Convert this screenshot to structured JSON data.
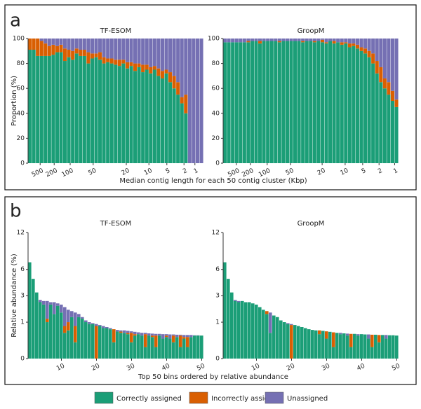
{
  "figure": {
    "panels": [
      {
        "label": "a",
        "xlabel": "Median contig length for each 50 contig cluster (Kbp)"
      },
      {
        "label": "b",
        "xlabel": "Top 50 bins ordered by relative abundance"
      }
    ]
  },
  "chart_data": [
    {
      "type": "stacked_bar",
      "title": "TF-ESOM",
      "ylabel": "Proportion (%)",
      "xlim": [
        0,
        45
      ],
      "xticks": [
        {
          "value": 3.1,
          "label": "500"
        },
        {
          "value": 6.7,
          "label": "200"
        },
        {
          "value": 10.8,
          "label": "100"
        },
        {
          "value": 16.7,
          "label": "50"
        },
        {
          "value": 25.2,
          "label": "20"
        },
        {
          "value": 31,
          "label": "10"
        },
        {
          "value": 35.6,
          "label": "5"
        },
        {
          "value": 40,
          "label": "2"
        },
        {
          "value": 42.8,
          "label": "1"
        }
      ],
      "ylim": [
        0,
        100
      ],
      "yticks": [
        0,
        20,
        40,
        60,
        80,
        100
      ],
      "series": [
        {
          "name": "Correctly assigned",
          "color": "#1b9e77",
          "values": [
            91,
            91,
            86,
            86,
            86,
            86,
            87,
            89,
            89,
            82,
            85,
            83,
            88,
            86,
            86,
            80,
            84,
            85,
            83,
            80,
            81,
            80,
            79,
            78,
            80,
            76,
            78,
            74,
            77,
            73,
            75,
            72,
            75,
            70,
            68,
            72,
            65,
            60,
            55,
            48,
            40,
            0,
            0,
            0,
            0
          ]
        },
        {
          "name": "Incorrectly assigned",
          "color": "#d95f02",
          "values": [
            9,
            9,
            14,
            12,
            10,
            8,
            8,
            5,
            6,
            10,
            6,
            7,
            4,
            5,
            5,
            9,
            4,
            3,
            6,
            5,
            3,
            4,
            4,
            5,
            3,
            5,
            3,
            6,
            3,
            6,
            4,
            5,
            3,
            6,
            6,
            3,
            8,
            10,
            10,
            5,
            15,
            0,
            0,
            0,
            0
          ]
        },
        {
          "name": "Unassigned",
          "color": "#7570b3",
          "values": [
            0,
            0,
            0,
            2,
            4,
            6,
            5,
            6,
            5,
            8,
            9,
            10,
            8,
            9,
            9,
            11,
            12,
            12,
            11,
            15,
            16,
            16,
            17,
            17,
            17,
            19,
            19,
            20,
            20,
            21,
            21,
            23,
            22,
            24,
            26,
            25,
            27,
            30,
            35,
            47,
            45,
            100,
            100,
            100,
            100
          ]
        }
      ]
    },
    {
      "type": "stacked_bar",
      "title": "GroopM",
      "xlim": [
        0,
        45
      ],
      "xticks": [
        {
          "value": 3.4,
          "label": "500"
        },
        {
          "value": 7,
          "label": "200"
        },
        {
          "value": 11.3,
          "label": "100"
        },
        {
          "value": 17.3,
          "label": "50"
        },
        {
          "value": 25.4,
          "label": "20"
        },
        {
          "value": 31.3,
          "label": "10"
        },
        {
          "value": 35.8,
          "label": "5"
        },
        {
          "value": 40,
          "label": "2"
        },
        {
          "value": 44,
          "label": "1"
        }
      ],
      "ylim": [
        0,
        100
      ],
      "yticks": [
        0,
        20,
        40,
        60,
        80,
        100
      ],
      "series": [
        {
          "name": "Correctly assigned",
          "color": "#1b9e77",
          "values": [
            97,
            97,
            97,
            97,
            97,
            97,
            97,
            98,
            98,
            96,
            98,
            98,
            98,
            98,
            97,
            98,
            98,
            98,
            98,
            98,
            97,
            98,
            98,
            97,
            98,
            97,
            96,
            98,
            96,
            97,
            95,
            96,
            93,
            94,
            92,
            90,
            88,
            85,
            80,
            72,
            65,
            60,
            55,
            50,
            45
          ]
        },
        {
          "name": "Incorrectly assigned",
          "color": "#d95f02",
          "values": [
            0,
            0,
            0,
            0,
            0,
            0,
            1,
            0,
            0,
            2,
            0,
            0,
            0,
            0,
            1,
            0,
            0,
            0,
            0,
            0,
            1,
            0,
            0,
            1,
            0,
            2,
            1,
            0,
            2,
            0,
            2,
            1,
            3,
            2,
            3,
            3,
            4,
            5,
            8,
            10,
            12,
            8,
            10,
            8,
            6
          ]
        },
        {
          "name": "Unassigned",
          "color": "#7570b3",
          "values": [
            3,
            3,
            3,
            3,
            3,
            3,
            2,
            2,
            2,
            2,
            2,
            2,
            2,
            2,
            2,
            2,
            2,
            2,
            2,
            2,
            2,
            2,
            2,
            2,
            2,
            1,
            3,
            2,
            2,
            3,
            3,
            3,
            4,
            4,
            5,
            7,
            8,
            10,
            12,
            18,
            23,
            32,
            35,
            42,
            49
          ]
        }
      ]
    },
    {
      "type": "stacked_bar",
      "title": "TF-ESOM",
      "ylabel": "Relative abundance (%)",
      "x": [
        1,
        2,
        3,
        4,
        5,
        6,
        7,
        8,
        9,
        10,
        11,
        12,
        13,
        14,
        15,
        16,
        17,
        18,
        19,
        20,
        21,
        22,
        23,
        24,
        25,
        26,
        27,
        28,
        29,
        30,
        31,
        32,
        33,
        34,
        35,
        36,
        37,
        38,
        39,
        40,
        41,
        42,
        43,
        44,
        45,
        46,
        47,
        48,
        49,
        50
      ],
      "xlim": [
        0.5,
        50.5
      ],
      "xticks": [
        10,
        20,
        30,
        40,
        50
      ],
      "yscale": "sqrt",
      "ylim": [
        0,
        12
      ],
      "yticks": [
        0,
        1,
        3,
        6,
        12
      ],
      "series": [
        {
          "name": "Correctly assigned",
          "color": "#1b9e77",
          "values": [
            7.0,
            4.8,
            3.3,
            2.4,
            2.2,
            1.0,
            2.2,
            1.5,
            2.1,
            1.6,
            0.5,
            0.6,
            1.3,
            0.2,
            1.3,
            1.2,
            1.0,
            0.9,
            0.9,
            0,
            0.8,
            0.7,
            0.7,
            0.65,
            0.2,
            0.55,
            0.5,
            0.5,
            0.45,
            0.2,
            0.4,
            0.45,
            0.4,
            0.1,
            0.4,
            0.35,
            0.1,
            0.4,
            0.3,
            0.35,
            0.3,
            0.2,
            0.35,
            0.1,
            0.3,
            0.1,
            0.35,
            0.4,
            0.4,
            0.4
          ]
        },
        {
          "name": "Incorrectly assigned",
          "color": "#d95f02",
          "values": [
            0,
            0,
            0,
            0,
            0,
            0.2,
            0,
            0,
            0,
            0,
            0.3,
            0.4,
            0,
            0.6,
            0,
            0,
            0,
            0,
            0,
            0.8,
            0,
            0,
            0,
            0,
            0.45,
            0,
            0.05,
            0,
            0.05,
            0.3,
            0.05,
            0,
            0,
            0.35,
            0,
            0.05,
            0.3,
            0,
            0,
            0.05,
            0,
            0.2,
            0,
            0.3,
            0.05,
            0.25,
            0,
            0,
            0,
            0
          ]
        },
        {
          "name": "Unassigned",
          "color": "#7570b3",
          "values": [
            0,
            0,
            0,
            0.2,
            0.3,
            1.3,
            0.2,
            0.9,
            0.2,
            0.6,
            1.2,
            0.8,
            0.4,
            0.8,
            0.2,
            0.1,
            0.1,
            0.1,
            0.05,
            0.1,
            0.05,
            0.1,
            0.05,
            0.05,
            0,
            0.07,
            0.05,
            0.1,
            0.08,
            0.06,
            0.09,
            0.07,
            0.1,
            0.05,
            0.08,
            0.07,
            0.06,
            0.06,
            0.15,
            0.05,
            0.14,
            0.04,
            0.08,
            0.03,
            0.07,
            0.07,
            0.07,
            0.01,
            0.01,
            0
          ]
        }
      ]
    },
    {
      "type": "stacked_bar",
      "title": "GroopM",
      "x": [
        1,
        2,
        3,
        4,
        5,
        6,
        7,
        8,
        9,
        10,
        11,
        12,
        13,
        14,
        15,
        16,
        17,
        18,
        19,
        20,
        21,
        22,
        23,
        24,
        25,
        26,
        27,
        28,
        29,
        30,
        31,
        32,
        33,
        34,
        35,
        36,
        37,
        38,
        39,
        40,
        41,
        42,
        43,
        44,
        45,
        46,
        47,
        48,
        49,
        50
      ],
      "xlim": [
        0.5,
        50.5
      ],
      "xticks": [
        10,
        20,
        30,
        40,
        50
      ],
      "yscale": "sqrt",
      "ylim": [
        0,
        12
      ],
      "yticks": [
        0,
        1,
        3,
        6,
        12
      ],
      "series": [
        {
          "name": "Correctly assigned",
          "color": "#1b9e77",
          "values": [
            7.0,
            4.8,
            3.3,
            2.5,
            2.4,
            2.5,
            2.4,
            2.4,
            2.3,
            2.2,
            2.0,
            1.8,
            1.5,
            0.5,
            1.4,
            1.3,
            1.1,
            1.0,
            0.9,
            0,
            0.85,
            0.8,
            0.75,
            0.7,
            0.65,
            0.62,
            0.6,
            0.45,
            0.58,
            0.3,
            0.54,
            0.1,
            0.5,
            0.45,
            0.48,
            0.4,
            0.1,
            0.46,
            0.4,
            0.45,
            0.44,
            0.3,
            0.1,
            0.43,
            0.2,
            0.42,
            0.3,
            0.41,
            0.41,
            0.4
          ]
        },
        {
          "name": "Incorrectly assigned",
          "color": "#d95f02",
          "values": [
            0,
            0,
            0,
            0,
            0,
            0,
            0,
            0,
            0,
            0,
            0,
            0,
            0.2,
            0,
            0,
            0,
            0,
            0,
            0,
            0.85,
            0,
            0,
            0,
            0,
            0,
            0,
            0,
            0.15,
            0,
            0.26,
            0,
            0.42,
            0,
            0,
            0,
            0,
            0.36,
            0,
            0,
            0,
            0,
            0,
            0.33,
            0,
            0.22,
            0,
            0,
            0,
            0,
            0
          ]
        },
        {
          "name": "Unassigned",
          "color": "#7570b3",
          "values": [
            0,
            0,
            0,
            0.1,
            0.1,
            0,
            0,
            0,
            0,
            0,
            0,
            0,
            0,
            1.1,
            0,
            0,
            0,
            0,
            0.05,
            0.05,
            0,
            0,
            0,
            0,
            0,
            0,
            0,
            0,
            0,
            0,
            0,
            0,
            0,
            0.05,
            0,
            0.07,
            0,
            0,
            0.05,
            0,
            0,
            0.14,
            0,
            0,
            0,
            0,
            0.12,
            0,
            0,
            0
          ]
        }
      ]
    }
  ]
}
